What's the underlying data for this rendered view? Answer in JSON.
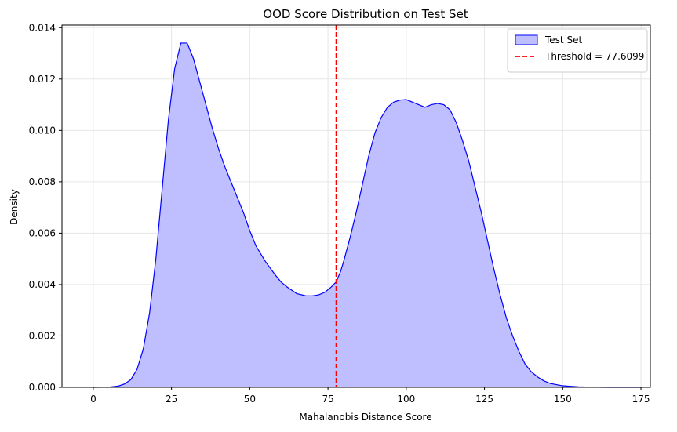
{
  "chart_data": {
    "type": "area",
    "title": "OOD Score Distribution on Test Set",
    "xlabel": "Mahalanobis Distance Score",
    "ylabel": "Density",
    "xlim": [
      -10,
      178
    ],
    "ylim": [
      0,
      0.0141
    ],
    "xticks": [
      0,
      25,
      50,
      75,
      100,
      125,
      150,
      175
    ],
    "xtick_labels": [
      "0",
      "25",
      "50",
      "75",
      "100",
      "125",
      "150",
      "175"
    ],
    "yticks": [
      0,
      0.002,
      0.004,
      0.006,
      0.008,
      0.01,
      0.012,
      0.014
    ],
    "ytick_labels": [
      "0.000",
      "0.002",
      "0.004",
      "0.006",
      "0.008",
      "0.010",
      "0.012",
      "0.014"
    ],
    "grid": true,
    "legend_position": "top-right",
    "series": [
      {
        "name": "Test Set",
        "type": "area",
        "color": "#0000ff",
        "fill": "#bfbfff",
        "x": [
          0,
          5,
          8,
          10,
          12,
          14,
          16,
          18,
          20,
          22,
          24,
          26,
          28,
          30,
          32,
          34,
          36,
          38,
          40,
          42,
          44,
          46,
          48,
          50,
          52,
          55,
          58,
          60,
          62,
          65,
          68,
          70,
          72,
          74,
          76,
          77.6,
          79,
          80,
          82,
          84,
          86,
          88,
          90,
          92,
          94,
          96,
          98,
          100,
          102,
          104,
          106,
          108,
          110,
          112,
          114,
          116,
          118,
          120,
          122,
          124,
          126,
          128,
          130,
          132,
          134,
          136,
          138,
          140,
          142,
          144,
          146,
          150,
          155,
          160,
          165,
          170,
          175
        ],
        "values": [
          0,
          1e-05,
          5e-05,
          0.00013,
          0.0003,
          0.0007,
          0.0015,
          0.0029,
          0.005,
          0.0077,
          0.0104,
          0.0124,
          0.0134,
          0.0134,
          0.0128,
          0.0119,
          0.011,
          0.0101,
          0.0093,
          0.0086,
          0.008,
          0.0074,
          0.0068,
          0.0061,
          0.0055,
          0.0049,
          0.0044,
          0.0041,
          0.0039,
          0.00365,
          0.00356,
          0.00356,
          0.0036,
          0.0037,
          0.0039,
          0.0041,
          0.0045,
          0.0049,
          0.0058,
          0.0068,
          0.0079,
          0.009,
          0.0099,
          0.0105,
          0.0109,
          0.0111,
          0.01118,
          0.0112,
          0.0111,
          0.011,
          0.0109,
          0.011,
          0.01105,
          0.011,
          0.0108,
          0.0103,
          0.0096,
          0.0088,
          0.0078,
          0.0068,
          0.0057,
          0.0046,
          0.0036,
          0.0027,
          0.002,
          0.0014,
          0.0009,
          0.0006,
          0.0004,
          0.00025,
          0.00015,
          6e-05,
          2e-05,
          5e-06,
          1e-06,
          0,
          0
        ]
      }
    ],
    "threshold": {
      "value": 77.6099,
      "label": "Threshold = 77.6099",
      "color": "#ff0000",
      "style": "dashed"
    }
  }
}
